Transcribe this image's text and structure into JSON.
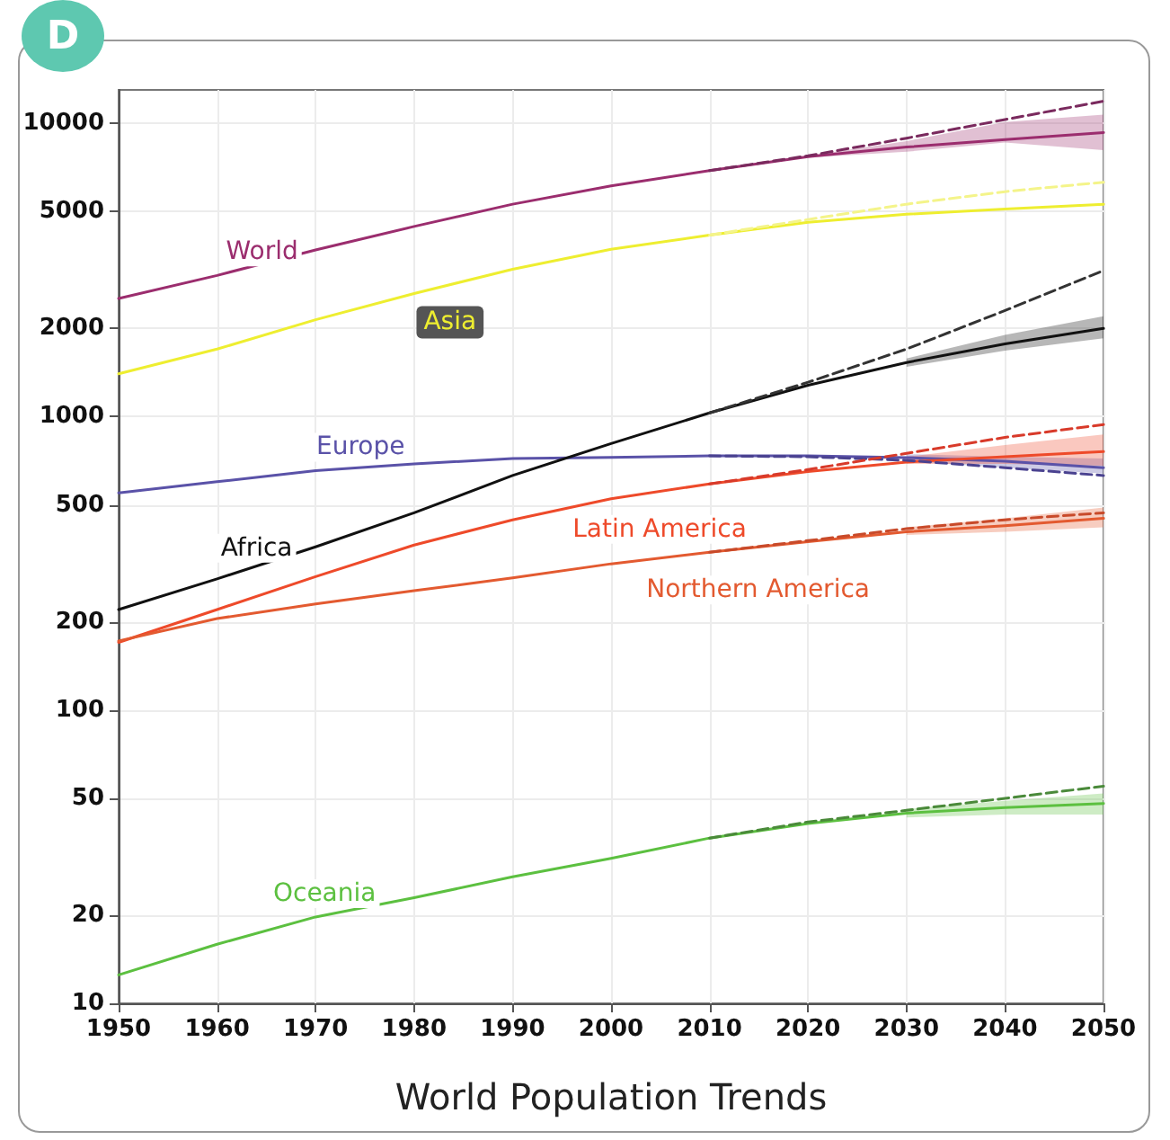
{
  "chart_data": {
    "type": "line",
    "xlabel": "World Population Trends",
    "annotations": [
      "D"
    ],
    "x": [
      1950,
      1960,
      1970,
      1980,
      1990,
      2000,
      2010,
      2020,
      2030,
      2040,
      2050
    ],
    "series": [
      {
        "name": "World",
        "color": "#9b2d6e",
        "values": [
          2530,
          3030,
          3700,
          4450,
          5300,
          6120,
          6900,
          7700,
          8300,
          8800,
          9300
        ],
        "lower": [
          null,
          null,
          null,
          null,
          null,
          null,
          null,
          7650,
          8000,
          8600,
          8100
        ],
        "upper": [
          null,
          null,
          null,
          null,
          null,
          null,
          null,
          7750,
          8700,
          10100,
          10700
        ]
      },
      {
        "name": "Asia",
        "color": "#eeee30",
        "values": [
          1400,
          1700,
          2140,
          2630,
          3180,
          3720,
          4160,
          4600,
          4900,
          5100,
          5300
        ]
      },
      {
        "name": "Europe",
        "color": "#5a52a8",
        "values": [
          550,
          600,
          655,
          690,
          720,
          727,
          735,
          735,
          725,
          705,
          670
        ],
        "lower": [
          null,
          null,
          null,
          null,
          null,
          null,
          null,
          null,
          705,
          670,
          640
        ],
        "upper": [
          null,
          null,
          null,
          null,
          null,
          null,
          null,
          null,
          745,
          730,
          720
        ]
      },
      {
        "name": "Africa",
        "color": "#111111",
        "values": [
          220,
          280,
          360,
          470,
          630,
          810,
          1030,
          1280,
          1530,
          1770,
          2000
        ],
        "lower": [
          null,
          null,
          null,
          null,
          null,
          null,
          null,
          null,
          1480,
          1680,
          1850
        ],
        "upper": [
          null,
          null,
          null,
          null,
          null,
          null,
          null,
          null,
          1580,
          1900,
          2200
        ]
      },
      {
        "name": "Latin America",
        "color": "#ee4a2a",
        "values": [
          170,
          220,
          285,
          365,
          445,
          525,
          590,
          650,
          700,
          730,
          760
        ],
        "lower": [
          null,
          null,
          null,
          null,
          null,
          null,
          null,
          null,
          690,
          690,
          680
        ],
        "upper": [
          null,
          null,
          null,
          null,
          null,
          null,
          null,
          null,
          730,
          800,
          870
        ]
      },
      {
        "name": "Northern America",
        "color": "#e35a30",
        "values": [
          172,
          205,
          230,
          255,
          282,
          315,
          345,
          375,
          405,
          425,
          450
        ],
        "lower": [
          null,
          null,
          null,
          null,
          null,
          null,
          null,
          null,
          395,
          405,
          420
        ],
        "upper": [
          null,
          null,
          null,
          null,
          null,
          null,
          null,
          null,
          420,
          450,
          490
        ]
      },
      {
        "name": "Oceania",
        "color": "#5cc040",
        "values": [
          12.5,
          15.9,
          19.7,
          22.9,
          27,
          31.2,
          36.6,
          41,
          44.5,
          46.5,
          48
        ],
        "lower": [
          null,
          null,
          null,
          null,
          null,
          null,
          null,
          null,
          43,
          44,
          44
        ],
        "upper": [
          null,
          null,
          null,
          null,
          null,
          null,
          null,
          null,
          46,
          49,
          52
        ]
      },
      {
        "color": "#7a2a5e",
        "line_style": "dashed",
        "x": [
          2010,
          2020,
          2030,
          2040,
          2050
        ],
        "values": [
          6900,
          7750,
          8900,
          10300,
          11900
        ]
      },
      {
        "color": "#f4f48a",
        "line_style": "dashed",
        "x": [
          2010,
          2020,
          2030,
          2040,
          2050
        ],
        "values": [
          4160,
          4700,
          5300,
          5850,
          6300
        ]
      },
      {
        "color": "#333333",
        "line_style": "dashed",
        "x": [
          2010,
          2020,
          2030,
          2040,
          2050
        ],
        "values": [
          1030,
          1310,
          1700,
          2300,
          3150
        ]
      },
      {
        "color": "#4a4290",
        "line_style": "dashed",
        "x": [
          2010,
          2020,
          2030,
          2040,
          2050
        ],
        "values": [
          735,
          730,
          710,
          670,
          630
        ]
      },
      {
        "color": "#d83a2a",
        "line_style": "dashed",
        "x": [
          2010,
          2020,
          2030,
          2040,
          2050
        ],
        "values": [
          590,
          660,
          750,
          850,
          940
        ]
      },
      {
        "color": "#c84a2a",
        "line_style": "dashed",
        "x": [
          2010,
          2020,
          2030,
          2040,
          2050
        ],
        "values": [
          345,
          378,
          415,
          445,
          470
        ]
      },
      {
        "color": "#4a8a3a",
        "line_style": "dashed",
        "x": [
          2010,
          2020,
          2030,
          2040,
          2050
        ],
        "values": [
          36.6,
          41.5,
          45.5,
          50,
          55
        ]
      }
    ],
    "log": "y",
    "xlim": [
      1950,
      2050
    ],
    "ylim": [
      10,
      13000
    ],
    "xticks": [
      1950,
      1960,
      1970,
      1980,
      1990,
      2000,
      2010,
      2020,
      2030,
      2040,
      2050
    ],
    "yticks": [
      10,
      20,
      50,
      100,
      200,
      500,
      1000,
      2000,
      5000,
      10000
    ],
    "grid": true,
    "marker": "none",
    "line_style": "solid"
  }
}
